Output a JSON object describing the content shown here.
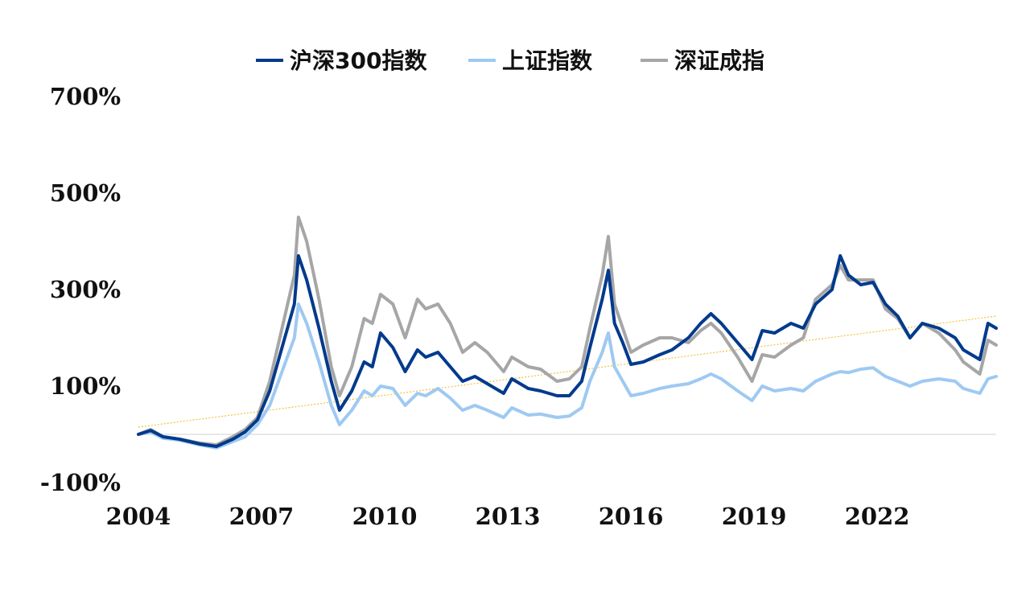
{
  "chart_data": {
    "type": "line",
    "title": "",
    "xlabel": "",
    "ylabel": "",
    "x_ticks": [
      "2004",
      "2007",
      "2010",
      "2013",
      "2016",
      "2019",
      "2022"
    ],
    "y_ticks": [
      "-100%",
      "100%",
      "300%",
      "500%",
      "700%"
    ],
    "xlim": [
      2004.0,
      2024.9
    ],
    "ylim": [
      -100,
      700
    ],
    "grid": false,
    "legend_position": "top",
    "series": [
      {
        "name": "沪深300指数",
        "color": "#003a8c",
        "points": [
          [
            2004.0,
            0
          ],
          [
            2004.3,
            8
          ],
          [
            2004.6,
            -5
          ],
          [
            2005.0,
            -10
          ],
          [
            2005.5,
            -20
          ],
          [
            2005.9,
            -25
          ],
          [
            2006.3,
            -10
          ],
          [
            2006.6,
            5
          ],
          [
            2006.9,
            30
          ],
          [
            2007.2,
            90
          ],
          [
            2007.5,
            180
          ],
          [
            2007.8,
            270
          ],
          [
            2007.9,
            370
          ],
          [
            2008.1,
            320
          ],
          [
            2008.4,
            220
          ],
          [
            2008.7,
            110
          ],
          [
            2008.9,
            50
          ],
          [
            2009.2,
            90
          ],
          [
            2009.5,
            150
          ],
          [
            2009.7,
            140
          ],
          [
            2009.9,
            210
          ],
          [
            2010.2,
            180
          ],
          [
            2010.5,
            130
          ],
          [
            2010.8,
            175
          ],
          [
            2011.0,
            160
          ],
          [
            2011.3,
            170
          ],
          [
            2011.6,
            140
          ],
          [
            2011.9,
            110
          ],
          [
            2012.2,
            120
          ],
          [
            2012.5,
            105
          ],
          [
            2012.9,
            85
          ],
          [
            2013.1,
            115
          ],
          [
            2013.5,
            95
          ],
          [
            2013.8,
            90
          ],
          [
            2014.2,
            80
          ],
          [
            2014.5,
            80
          ],
          [
            2014.8,
            110
          ],
          [
            2015.0,
            180
          ],
          [
            2015.3,
            280
          ],
          [
            2015.45,
            340
          ],
          [
            2015.6,
            230
          ],
          [
            2015.8,
            190
          ],
          [
            2016.0,
            145
          ],
          [
            2016.3,
            150
          ],
          [
            2016.7,
            165
          ],
          [
            2017.0,
            175
          ],
          [
            2017.4,
            200
          ],
          [
            2017.7,
            230
          ],
          [
            2017.95,
            250
          ],
          [
            2018.2,
            230
          ],
          [
            2018.6,
            190
          ],
          [
            2018.95,
            155
          ],
          [
            2019.2,
            215
          ],
          [
            2019.5,
            210
          ],
          [
            2019.9,
            230
          ],
          [
            2020.2,
            220
          ],
          [
            2020.5,
            270
          ],
          [
            2020.9,
            300
          ],
          [
            2021.1,
            370
          ],
          [
            2021.3,
            330
          ],
          [
            2021.6,
            310
          ],
          [
            2021.9,
            315
          ],
          [
            2022.2,
            270
          ],
          [
            2022.5,
            245
          ],
          [
            2022.8,
            200
          ],
          [
            2023.1,
            230
          ],
          [
            2023.5,
            220
          ],
          [
            2023.9,
            200
          ],
          [
            2024.1,
            175
          ],
          [
            2024.5,
            155
          ],
          [
            2024.7,
            230
          ],
          [
            2024.9,
            220
          ]
        ]
      },
      {
        "name": "上证指数",
        "color": "#9ec9f2",
        "points": [
          [
            2004.0,
            0
          ],
          [
            2004.3,
            5
          ],
          [
            2004.6,
            -8
          ],
          [
            2005.0,
            -12
          ],
          [
            2005.5,
            -22
          ],
          [
            2005.9,
            -28
          ],
          [
            2006.3,
            -15
          ],
          [
            2006.6,
            -5
          ],
          [
            2006.9,
            20
          ],
          [
            2007.2,
            60
          ],
          [
            2007.5,
            130
          ],
          [
            2007.8,
            200
          ],
          [
            2007.9,
            270
          ],
          [
            2008.1,
            230
          ],
          [
            2008.4,
            150
          ],
          [
            2008.7,
            60
          ],
          [
            2008.9,
            20
          ],
          [
            2009.2,
            50
          ],
          [
            2009.5,
            90
          ],
          [
            2009.7,
            80
          ],
          [
            2009.9,
            100
          ],
          [
            2010.2,
            95
          ],
          [
            2010.5,
            60
          ],
          [
            2010.8,
            85
          ],
          [
            2011.0,
            80
          ],
          [
            2011.3,
            95
          ],
          [
            2011.6,
            75
          ],
          [
            2011.9,
            50
          ],
          [
            2012.2,
            60
          ],
          [
            2012.5,
            50
          ],
          [
            2012.9,
            35
          ],
          [
            2013.1,
            55
          ],
          [
            2013.5,
            40
          ],
          [
            2013.8,
            42
          ],
          [
            2014.2,
            35
          ],
          [
            2014.5,
            38
          ],
          [
            2014.8,
            55
          ],
          [
            2015.0,
            110
          ],
          [
            2015.3,
            170
          ],
          [
            2015.45,
            210
          ],
          [
            2015.6,
            140
          ],
          [
            2015.8,
            110
          ],
          [
            2016.0,
            80
          ],
          [
            2016.3,
            85
          ],
          [
            2016.7,
            95
          ],
          [
            2017.0,
            100
          ],
          [
            2017.4,
            105
          ],
          [
            2017.7,
            115
          ],
          [
            2017.95,
            125
          ],
          [
            2018.2,
            115
          ],
          [
            2018.6,
            90
          ],
          [
            2018.95,
            70
          ],
          [
            2019.2,
            100
          ],
          [
            2019.5,
            90
          ],
          [
            2019.9,
            95
          ],
          [
            2020.2,
            90
          ],
          [
            2020.5,
            110
          ],
          [
            2020.9,
            125
          ],
          [
            2021.1,
            130
          ],
          [
            2021.3,
            128
          ],
          [
            2021.6,
            135
          ],
          [
            2021.9,
            138
          ],
          [
            2022.2,
            120
          ],
          [
            2022.5,
            110
          ],
          [
            2022.8,
            100
          ],
          [
            2023.1,
            110
          ],
          [
            2023.5,
            115
          ],
          [
            2023.9,
            110
          ],
          [
            2024.1,
            95
          ],
          [
            2024.5,
            85
          ],
          [
            2024.7,
            115
          ],
          [
            2024.9,
            120
          ]
        ]
      },
      {
        "name": "深证成指",
        "color": "#a6a6a6",
        "points": [
          [
            2004.0,
            0
          ],
          [
            2004.3,
            10
          ],
          [
            2004.6,
            -5
          ],
          [
            2005.0,
            -10
          ],
          [
            2005.5,
            -18
          ],
          [
            2005.9,
            -22
          ],
          [
            2006.3,
            -5
          ],
          [
            2006.6,
            10
          ],
          [
            2006.9,
            35
          ],
          [
            2007.2,
            110
          ],
          [
            2007.5,
            220
          ],
          [
            2007.8,
            330
          ],
          [
            2007.9,
            450
          ],
          [
            2008.1,
            400
          ],
          [
            2008.4,
            280
          ],
          [
            2008.7,
            140
          ],
          [
            2008.9,
            80
          ],
          [
            2009.2,
            140
          ],
          [
            2009.5,
            240
          ],
          [
            2009.7,
            230
          ],
          [
            2009.9,
            290
          ],
          [
            2010.2,
            270
          ],
          [
            2010.5,
            200
          ],
          [
            2010.8,
            280
          ],
          [
            2011.0,
            260
          ],
          [
            2011.3,
            270
          ],
          [
            2011.6,
            230
          ],
          [
            2011.9,
            170
          ],
          [
            2012.2,
            190
          ],
          [
            2012.5,
            170
          ],
          [
            2012.9,
            130
          ],
          [
            2013.1,
            160
          ],
          [
            2013.5,
            140
          ],
          [
            2013.8,
            135
          ],
          [
            2014.2,
            110
          ],
          [
            2014.5,
            115
          ],
          [
            2014.8,
            140
          ],
          [
            2015.0,
            220
          ],
          [
            2015.3,
            330
          ],
          [
            2015.45,
            410
          ],
          [
            2015.6,
            270
          ],
          [
            2015.8,
            220
          ],
          [
            2016.0,
            170
          ],
          [
            2016.3,
            185
          ],
          [
            2016.7,
            200
          ],
          [
            2017.0,
            200
          ],
          [
            2017.4,
            190
          ],
          [
            2017.7,
            215
          ],
          [
            2017.95,
            230
          ],
          [
            2018.2,
            210
          ],
          [
            2018.6,
            160
          ],
          [
            2018.95,
            110
          ],
          [
            2019.2,
            165
          ],
          [
            2019.5,
            160
          ],
          [
            2019.9,
            185
          ],
          [
            2020.2,
            200
          ],
          [
            2020.5,
            280
          ],
          [
            2020.9,
            310
          ],
          [
            2021.1,
            350
          ],
          [
            2021.3,
            320
          ],
          [
            2021.6,
            320
          ],
          [
            2021.9,
            320
          ],
          [
            2022.2,
            260
          ],
          [
            2022.5,
            240
          ],
          [
            2022.8,
            200
          ],
          [
            2023.1,
            230
          ],
          [
            2023.5,
            210
          ],
          [
            2023.9,
            175
          ],
          [
            2024.1,
            150
          ],
          [
            2024.5,
            125
          ],
          [
            2024.7,
            195
          ],
          [
            2024.9,
            185
          ]
        ]
      }
    ],
    "trendline": {
      "color": "#f2c23a",
      "from": [
        2004.0,
        15
      ],
      "to": [
        2024.9,
        245
      ]
    }
  }
}
